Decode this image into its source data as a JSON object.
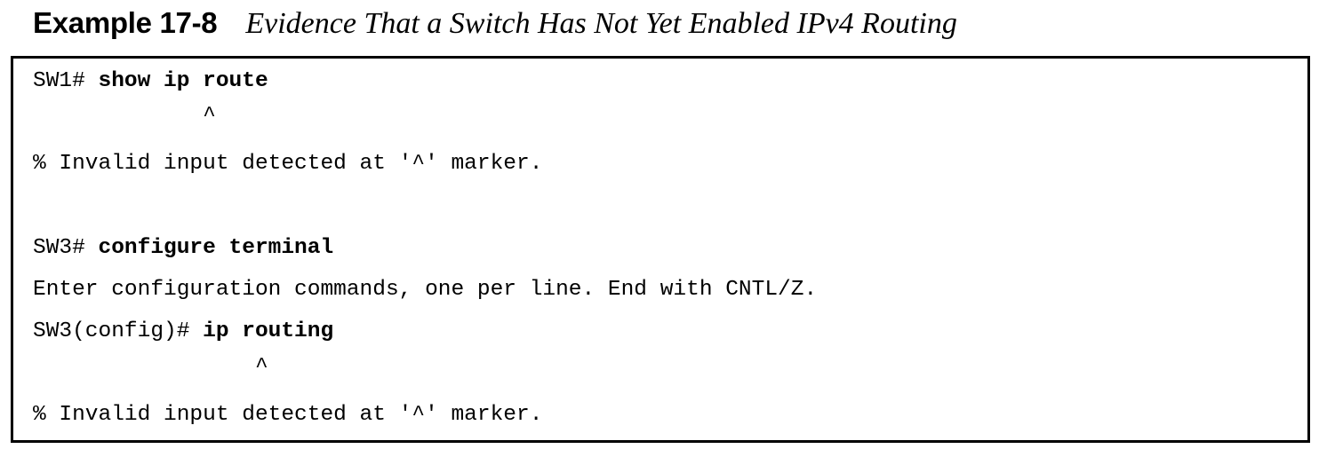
{
  "caption": {
    "label": "Example 17-8",
    "title": "Evidence That a Switch Has Not Yet Enabled IPv4 Routing"
  },
  "lines": [
    {
      "prompt": "SW1# ",
      "command": "show ip route"
    },
    {
      "text": "             ^"
    },
    {
      "text": "% Invalid input detected at '^' marker."
    },
    {
      "prompt": "SW3# ",
      "command": "configure terminal"
    },
    {
      "text": "Enter configuration commands, one per line. End with CNTL/Z."
    },
    {
      "prompt": "SW3(config)# ",
      "command": "ip routing"
    },
    {
      "text": "                 ^"
    },
    {
      "text": "% Invalid input detected at '^' marker."
    }
  ]
}
